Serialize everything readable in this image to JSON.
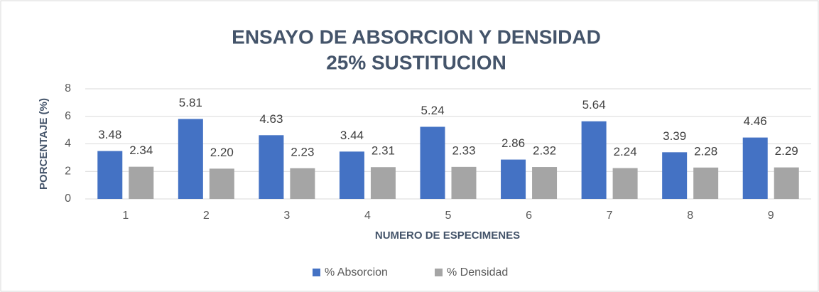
{
  "chart_data": {
    "type": "bar",
    "title": [
      "ENSAYO DE ABSORCION Y DENSIDAD",
      "25% SUSTITUCION"
    ],
    "x_label": "NUMERO DE ESPECIMENES",
    "y_label": "PORCENTAJE (%)",
    "categories": [
      "1",
      "2",
      "3",
      "4",
      "5",
      "6",
      "7",
      "8",
      "9"
    ],
    "series": [
      {
        "name": "% Absorcion",
        "color": "#4472c4",
        "values": [
          3.48,
          5.81,
          4.63,
          3.44,
          5.24,
          2.86,
          5.64,
          3.39,
          4.46
        ]
      },
      {
        "name": "% Densidad",
        "color": "#a5a5a5",
        "values": [
          2.34,
          2.2,
          2.23,
          2.31,
          2.33,
          2.32,
          2.24,
          2.28,
          2.29
        ],
        "value_labels": [
          "2.34",
          "2.20",
          "2.23",
          "2.31",
          "2.33",
          "2.32",
          "2.24",
          "2.28",
          "2.29"
        ]
      }
    ],
    "ylim": [
      0,
      8
    ],
    "yticks": [
      0,
      2,
      4,
      6,
      8
    ],
    "grid": true,
    "legend": "bottom"
  }
}
